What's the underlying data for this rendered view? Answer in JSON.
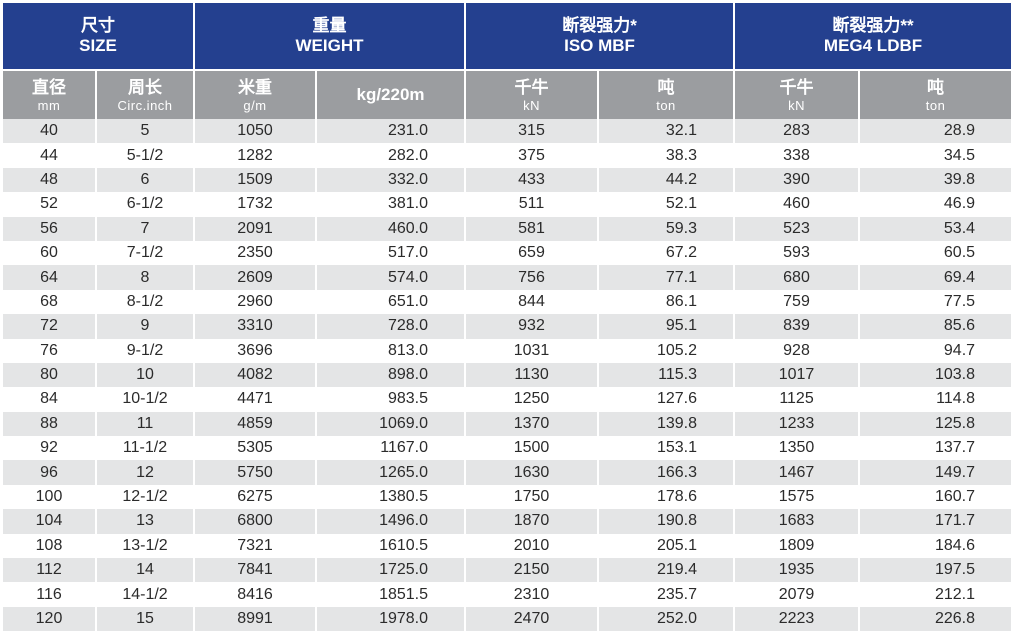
{
  "header": {
    "groups": [
      {
        "cn": "尺寸",
        "en": "SIZE"
      },
      {
        "cn": "重量",
        "en": "WEIGHT"
      },
      {
        "cn": "断裂强力*",
        "en": "ISO MBF"
      },
      {
        "cn": "断裂强力**",
        "en": "MEG4 LDBF"
      }
    ],
    "subcolumns": [
      {
        "cn": "直径",
        "en": "mm"
      },
      {
        "cn": "周长",
        "en": "Circ.inch"
      },
      {
        "cn": "米重",
        "en": "g/m"
      },
      {
        "cn": "kg/220m",
        "en": ""
      },
      {
        "cn": "千牛",
        "en": "kN"
      },
      {
        "cn": "吨",
        "en": "ton"
      },
      {
        "cn": "千牛",
        "en": "kN"
      },
      {
        "cn": "吨",
        "en": "ton"
      }
    ]
  },
  "rows": [
    [
      "40",
      "5",
      "1050",
      "231.0",
      "315",
      "32.1",
      "283",
      "28.9"
    ],
    [
      "44",
      "5-1/2",
      "1282",
      "282.0",
      "375",
      "38.3",
      "338",
      "34.5"
    ],
    [
      "48",
      "6",
      "1509",
      "332.0",
      "433",
      "44.2",
      "390",
      "39.8"
    ],
    [
      "52",
      "6-1/2",
      "1732",
      "381.0",
      "511",
      "52.1",
      "460",
      "46.9"
    ],
    [
      "56",
      "7",
      "2091",
      "460.0",
      "581",
      "59.3",
      "523",
      "53.4"
    ],
    [
      "60",
      "7-1/2",
      "2350",
      "517.0",
      "659",
      "67.2",
      "593",
      "60.5"
    ],
    [
      "64",
      "8",
      "2609",
      "574.0",
      "756",
      "77.1",
      "680",
      "69.4"
    ],
    [
      "68",
      "8-1/2",
      "2960",
      "651.0",
      "844",
      "86.1",
      "759",
      "77.5"
    ],
    [
      "72",
      "9",
      "3310",
      "728.0",
      "932",
      "95.1",
      "839",
      "85.6"
    ],
    [
      "76",
      "9-1/2",
      "3696",
      "813.0",
      "1031",
      "105.2",
      "928",
      "94.7"
    ],
    [
      "80",
      "10",
      "4082",
      "898.0",
      "1130",
      "115.3",
      "1017",
      "103.8"
    ],
    [
      "84",
      "10-1/2",
      "4471",
      "983.5",
      "1250",
      "127.6",
      "1125",
      "114.8"
    ],
    [
      "88",
      "11",
      "4859",
      "1069.0",
      "1370",
      "139.8",
      "1233",
      "125.8"
    ],
    [
      "92",
      "11-1/2",
      "5305",
      "1167.0",
      "1500",
      "153.1",
      "1350",
      "137.7"
    ],
    [
      "96",
      "12",
      "5750",
      "1265.0",
      "1630",
      "166.3",
      "1467",
      "149.7"
    ],
    [
      "100",
      "12-1/2",
      "6275",
      "1380.5",
      "1750",
      "178.6",
      "1575",
      "160.7"
    ],
    [
      "104",
      "13",
      "6800",
      "1496.0",
      "1870",
      "190.8",
      "1683",
      "171.7"
    ],
    [
      "108",
      "13-1/2",
      "7321",
      "1610.5",
      "2010",
      "205.1",
      "1809",
      "184.6"
    ],
    [
      "112",
      "14",
      "7841",
      "1725.0",
      "2150",
      "219.4",
      "1935",
      "197.5"
    ],
    [
      "116",
      "14-1/2",
      "8416",
      "1851.5",
      "2310",
      "235.7",
      "2079",
      "212.1"
    ],
    [
      "120",
      "15",
      "8991",
      "1978.0",
      "2470",
      "252.0",
      "2223",
      "226.8"
    ]
  ]
}
